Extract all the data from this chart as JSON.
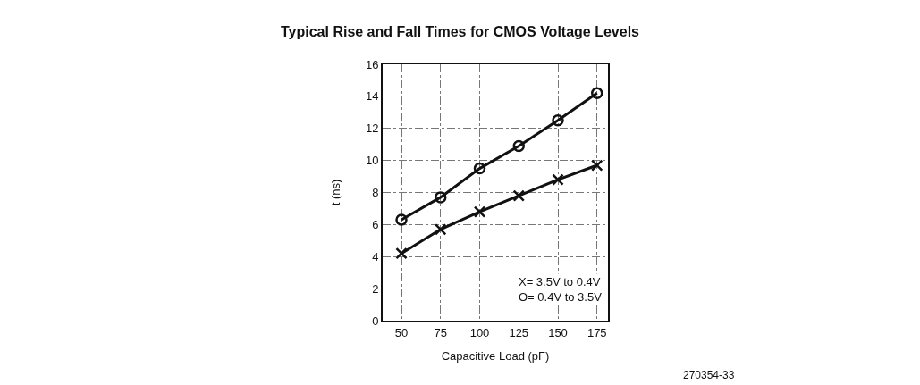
{
  "chart_data": {
    "type": "line",
    "title": "Typical Rise and Fall Times for CMOS Voltage Levels",
    "xlabel": "Capacitive Load (pF)",
    "ylabel": "t (ns)",
    "x": [
      50,
      75,
      100,
      125,
      150,
      175
    ],
    "series": [
      {
        "color": "#111111",
        "marker": "circle",
        "values": [
          6.3,
          7.7,
          9.5,
          10.9,
          12.5,
          14.2
        ]
      },
      {
        "color": "#111111",
        "marker": "cross",
        "values": [
          4.2,
          5.7,
          6.8,
          7.8,
          8.8,
          9.7
        ]
      }
    ],
    "xlim": [
      38,
      182
    ],
    "xticks": [
      50,
      75,
      100,
      125,
      150,
      175
    ],
    "ylim": [
      0,
      16
    ],
    "yticks": [
      0,
      2,
      4,
      6,
      8,
      10,
      12,
      14,
      16
    ],
    "grid": true,
    "line_style": "solid",
    "annotations": [
      "X= 3.5V to 0.4V",
      "O= 0.4V to 3.5V",
      "270354-33"
    ]
  }
}
